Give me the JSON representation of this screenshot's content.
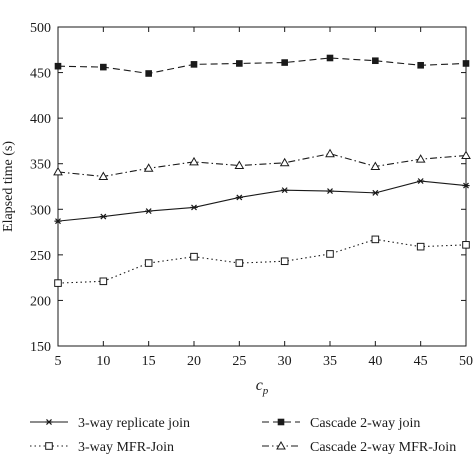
{
  "chart_data": {
    "type": "line",
    "title": "",
    "xlabel": "c_p",
    "xlabel_main": "c",
    "xlabel_sub": "p",
    "ylabel": "Elapsed time (s)",
    "x": [
      5,
      10,
      15,
      20,
      25,
      30,
      35,
      40,
      45,
      50
    ],
    "xlim": [
      5,
      50
    ],
    "ylim": [
      150,
      500
    ],
    "xticks": [
      5,
      10,
      15,
      20,
      25,
      30,
      35,
      40,
      45,
      50
    ],
    "yticks": [
      150,
      200,
      250,
      300,
      350,
      400,
      450,
      500
    ],
    "grid": false,
    "legend_position": "bottom",
    "series": [
      {
        "name": "3-way replicate join",
        "values": [
          287,
          292,
          298,
          302,
          313,
          321,
          320,
          318,
          331,
          326
        ],
        "line_style": "solid",
        "marker": "asterisk",
        "color": "#1a1a1a"
      },
      {
        "name": "Cascade 2-way join",
        "values": [
          457,
          456,
          449,
          459,
          460,
          461,
          466,
          463,
          458,
          460
        ],
        "line_style": "dashed",
        "marker": "filled-square",
        "color": "#1a1a1a"
      },
      {
        "name": "3-way MFR-Join",
        "values": [
          219,
          221,
          241,
          248,
          241,
          243,
          251,
          267,
          259,
          261
        ],
        "line_style": "dotted",
        "marker": "open-square",
        "color": "#1a1a1a"
      },
      {
        "name": "Cascade 2-way MFR-Join",
        "values": [
          341,
          336,
          345,
          352,
          348,
          351,
          361,
          347,
          355,
          359
        ],
        "line_style": "dash-dot",
        "marker": "open-triangle",
        "color": "#1a1a1a"
      }
    ]
  }
}
